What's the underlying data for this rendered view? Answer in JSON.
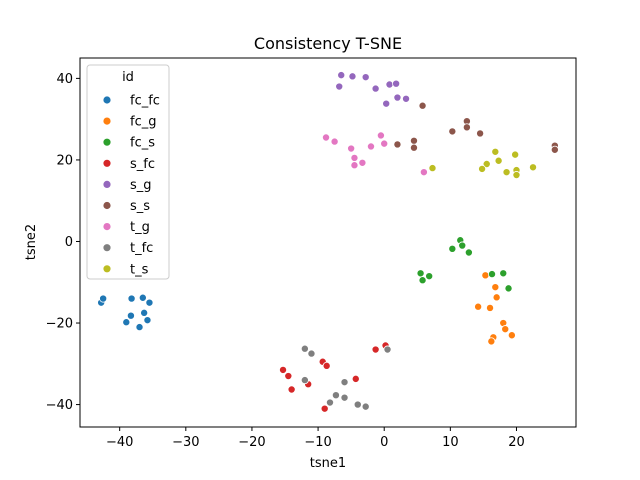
{
  "chart_data": {
    "type": "scatter",
    "title": "Consistency T-SNE",
    "xlabel": "tsne1",
    "ylabel": "tsne2",
    "xlim": [
      -46,
      29
    ],
    "ylim": [
      -45.5,
      45
    ],
    "xticks": [
      -40,
      -30,
      -20,
      -10,
      0,
      10,
      20
    ],
    "yticks": [
      -40,
      -20,
      0,
      20,
      40
    ],
    "grid": false,
    "legend": {
      "title": "id",
      "position": "top-left"
    },
    "series": [
      {
        "name": "fc_fc",
        "color": "#1f77b4",
        "points": [
          [
            -42.8,
            -15.0
          ],
          [
            -42.5,
            -14.0
          ],
          [
            -38.2,
            -14.0
          ],
          [
            -36.5,
            -13.8
          ],
          [
            -35.5,
            -15.0
          ],
          [
            -38.3,
            -18.2
          ],
          [
            -36.3,
            -17.5
          ],
          [
            -39.0,
            -19.8
          ],
          [
            -35.8,
            -19.3
          ],
          [
            -37.0,
            -21.0
          ]
        ]
      },
      {
        "name": "fc_g",
        "color": "#ff7f0e",
        "points": [
          [
            15.3,
            -8.3
          ],
          [
            16.8,
            -11.2
          ],
          [
            17.0,
            -13.7
          ],
          [
            14.2,
            -16.0
          ],
          [
            16.0,
            -16.3
          ],
          [
            18.0,
            -20.0
          ],
          [
            18.3,
            -21.5
          ],
          [
            19.3,
            -23.0
          ],
          [
            16.5,
            -23.5
          ],
          [
            16.2,
            -24.5
          ]
        ]
      },
      {
        "name": "fc_s",
        "color": "#2ca02c",
        "points": [
          [
            11.5,
            0.3
          ],
          [
            11.8,
            -1.0
          ],
          [
            10.3,
            -1.8
          ],
          [
            12.8,
            -2.7
          ],
          [
            5.5,
            -7.8
          ],
          [
            6.8,
            -8.5
          ],
          [
            5.8,
            -9.5
          ],
          [
            16.3,
            -8.0
          ],
          [
            18.0,
            -7.8
          ],
          [
            18.8,
            -11.5
          ]
        ]
      },
      {
        "name": "s_fc",
        "color": "#d62728",
        "points": [
          [
            -15.3,
            -31.5
          ],
          [
            -14.5,
            -33.0
          ],
          [
            -14.0,
            -36.3
          ],
          [
            -11.5,
            -35.0
          ],
          [
            -9.3,
            -29.5
          ],
          [
            -8.7,
            -30.5
          ],
          [
            -4.3,
            -33.7
          ],
          [
            -1.3,
            -26.5
          ],
          [
            0.2,
            -25.5
          ],
          [
            -9.0,
            -41.0
          ]
        ]
      },
      {
        "name": "s_g",
        "color": "#9467bd",
        "points": [
          [
            -6.5,
            40.8
          ],
          [
            -4.8,
            40.5
          ],
          [
            -2.8,
            40.3
          ],
          [
            -6.8,
            38.0
          ],
          [
            -1.3,
            37.5
          ],
          [
            0.8,
            38.5
          ],
          [
            1.8,
            38.7
          ],
          [
            2.0,
            35.3
          ],
          [
            3.3,
            35.0
          ],
          [
            0.3,
            33.8
          ]
        ]
      },
      {
        "name": "s_s",
        "color": "#8c564b",
        "points": [
          [
            5.8,
            33.3
          ],
          [
            12.5,
            29.5
          ],
          [
            12.5,
            28.0
          ],
          [
            10.3,
            27.0
          ],
          [
            14.5,
            26.5
          ],
          [
            4.5,
            24.7
          ],
          [
            4.5,
            23.0
          ],
          [
            2.0,
            23.8
          ],
          [
            25.8,
            23.5
          ],
          [
            25.8,
            22.5
          ]
        ]
      },
      {
        "name": "t_g",
        "color": "#e377c2",
        "points": [
          [
            -8.8,
            25.5
          ],
          [
            -7.5,
            24.5
          ],
          [
            -0.5,
            26.0
          ],
          [
            -5.0,
            22.8
          ],
          [
            0.0,
            24.0
          ],
          [
            -2.0,
            23.3
          ],
          [
            -4.5,
            20.5
          ],
          [
            -3.3,
            19.3
          ],
          [
            -4.5,
            18.7
          ],
          [
            6.0,
            17.0
          ]
        ]
      },
      {
        "name": "t_fc",
        "color": "#7f7f7f",
        "points": [
          [
            -12.0,
            -26.3
          ],
          [
            -11.0,
            -27.5
          ],
          [
            -12.0,
            -34.0
          ],
          [
            -6.0,
            -34.5
          ],
          [
            -7.3,
            -37.7
          ],
          [
            -8.2,
            -39.5
          ],
          [
            -6.0,
            -38.3
          ],
          [
            -4.0,
            -40.0
          ],
          [
            -2.8,
            -40.5
          ],
          [
            0.5,
            -26.5
          ]
        ]
      },
      {
        "name": "t_s",
        "color": "#bcbd22",
        "points": [
          [
            7.3,
            18.0
          ],
          [
            15.5,
            19.0
          ],
          [
            14.8,
            17.8
          ],
          [
            16.8,
            22.0
          ],
          [
            17.3,
            19.8
          ],
          [
            18.5,
            17.0
          ],
          [
            19.8,
            21.3
          ],
          [
            20.0,
            17.5
          ],
          [
            20.0,
            16.3
          ],
          [
            22.5,
            18.2
          ]
        ]
      }
    ]
  }
}
